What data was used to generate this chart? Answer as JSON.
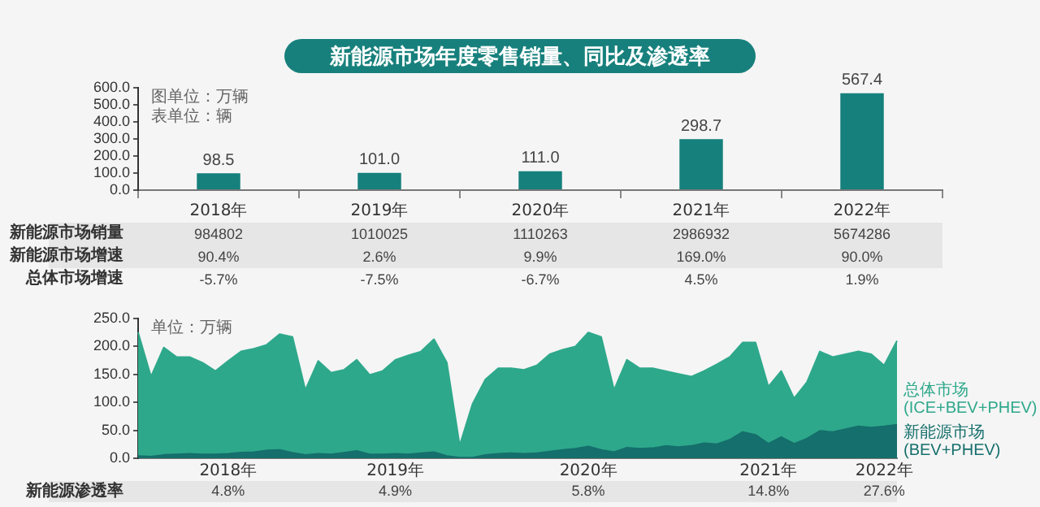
{
  "chart_data": [
    {
      "type": "bar",
      "title": "新能源市场年度零售销量、同比及渗透率",
      "categories": [
        "2018年",
        "2019年",
        "2020年",
        "2021年",
        "2022年"
      ],
      "values": [
        98.5,
        101.0,
        111.0,
        298.7,
        567.4
      ],
      "value_labels": [
        "98.5",
        "101.0",
        "111.0",
        "298.7",
        "567.4"
      ],
      "color": "#16807d",
      "ylim": [
        0,
        600
      ],
      "yticks": [
        {
          "value": 0,
          "label": "0.0"
        },
        {
          "value": 100,
          "label": "100.0"
        },
        {
          "value": 200,
          "label": "200.0"
        },
        {
          "value": 300,
          "label": "300.0"
        },
        {
          "value": 400,
          "label": "400.0"
        },
        {
          "value": 500,
          "label": "500.0"
        },
        {
          "value": 600,
          "label": "600.0"
        }
      ],
      "grid": false,
      "legend": false,
      "annotations": [
        "图单位：万辆",
        "表单位：辆",
        "新能源市场销量",
        "984802",
        "1010025",
        "1110263",
        "2986932",
        "5674286",
        "新能源市场增速",
        "90.4%",
        "2.6%",
        "9.9%",
        "169.0%",
        "90.0%",
        "总体市场增速",
        "-5.7%",
        "-7.5%",
        "-6.7%",
        "4.5%",
        "1.9%"
      ]
    },
    {
      "type": "area",
      "categories": [
        null,
        null,
        null,
        null,
        null,
        null,
        null,
        "2018年",
        null,
        null,
        null,
        null,
        null,
        null,
        null,
        null,
        null,
        null,
        null,
        null,
        "2019年",
        null,
        null,
        null,
        null,
        null,
        null,
        null,
        null,
        null,
        null,
        null,
        null,
        null,
        null,
        "2020年",
        null,
        null,
        null,
        null,
        null,
        null,
        null,
        null,
        null,
        null,
        null,
        null,
        null,
        "2021年",
        null,
        null,
        null,
        null,
        null,
        null,
        null,
        null,
        "2022年",
        null
      ],
      "series": [
        {
          "name": "总体市场 (ICE+BEV+PHEV)",
          "color": "#2ea88b",
          "values": [
            225,
            146,
            198,
            181,
            181,
            171,
            156,
            174,
            191,
            196,
            203,
            222,
            217,
            122,
            174,
            153,
            158,
            176,
            149,
            156,
            176,
            184,
            191,
            213,
            171,
            23,
            97,
            141,
            161,
            161,
            158,
            166,
            186,
            194,
            200,
            225,
            217,
            122,
            176,
            161,
            161,
            156,
            151,
            146,
            156,
            168,
            181,
            207,
            207,
            128,
            156,
            107,
            136,
            191,
            181,
            186,
            191,
            186,
            166,
            210
          ]
        },
        {
          "name": "新能源市场 (BEV+PHEV)",
          "color": "#156f6c",
          "values": [
            4,
            3,
            6,
            7,
            8,
            7,
            7,
            8,
            10,
            11,
            14,
            15,
            10,
            6,
            8,
            7,
            10,
            13,
            7,
            7,
            8,
            7,
            9,
            11,
            4,
            1,
            1,
            6,
            8,
            9,
            8,
            9,
            12,
            15,
            17,
            21,
            15,
            11,
            19,
            17,
            18,
            22,
            20,
            22,
            27,
            25,
            33,
            47,
            42,
            26,
            38,
            26,
            35,
            49,
            47,
            52,
            57,
            55,
            57,
            60
          ]
        }
      ],
      "ylim": [
        0,
        250
      ],
      "yticks": [
        {
          "value": 0,
          "label": "0.0"
        },
        {
          "value": 50,
          "label": "50.0"
        },
        {
          "value": 100,
          "label": "100.0"
        },
        {
          "value": 150,
          "label": "150.0"
        },
        {
          "value": 200,
          "label": "200.0"
        },
        {
          "value": 250,
          "label": "250.0"
        }
      ],
      "grid": false,
      "legend": false,
      "annotations": [
        "单位：万辆",
        "新能源渗透率",
        "4.8%",
        "4.9%",
        "5.8%",
        "14.8%",
        "27.6%"
      ]
    }
  ]
}
